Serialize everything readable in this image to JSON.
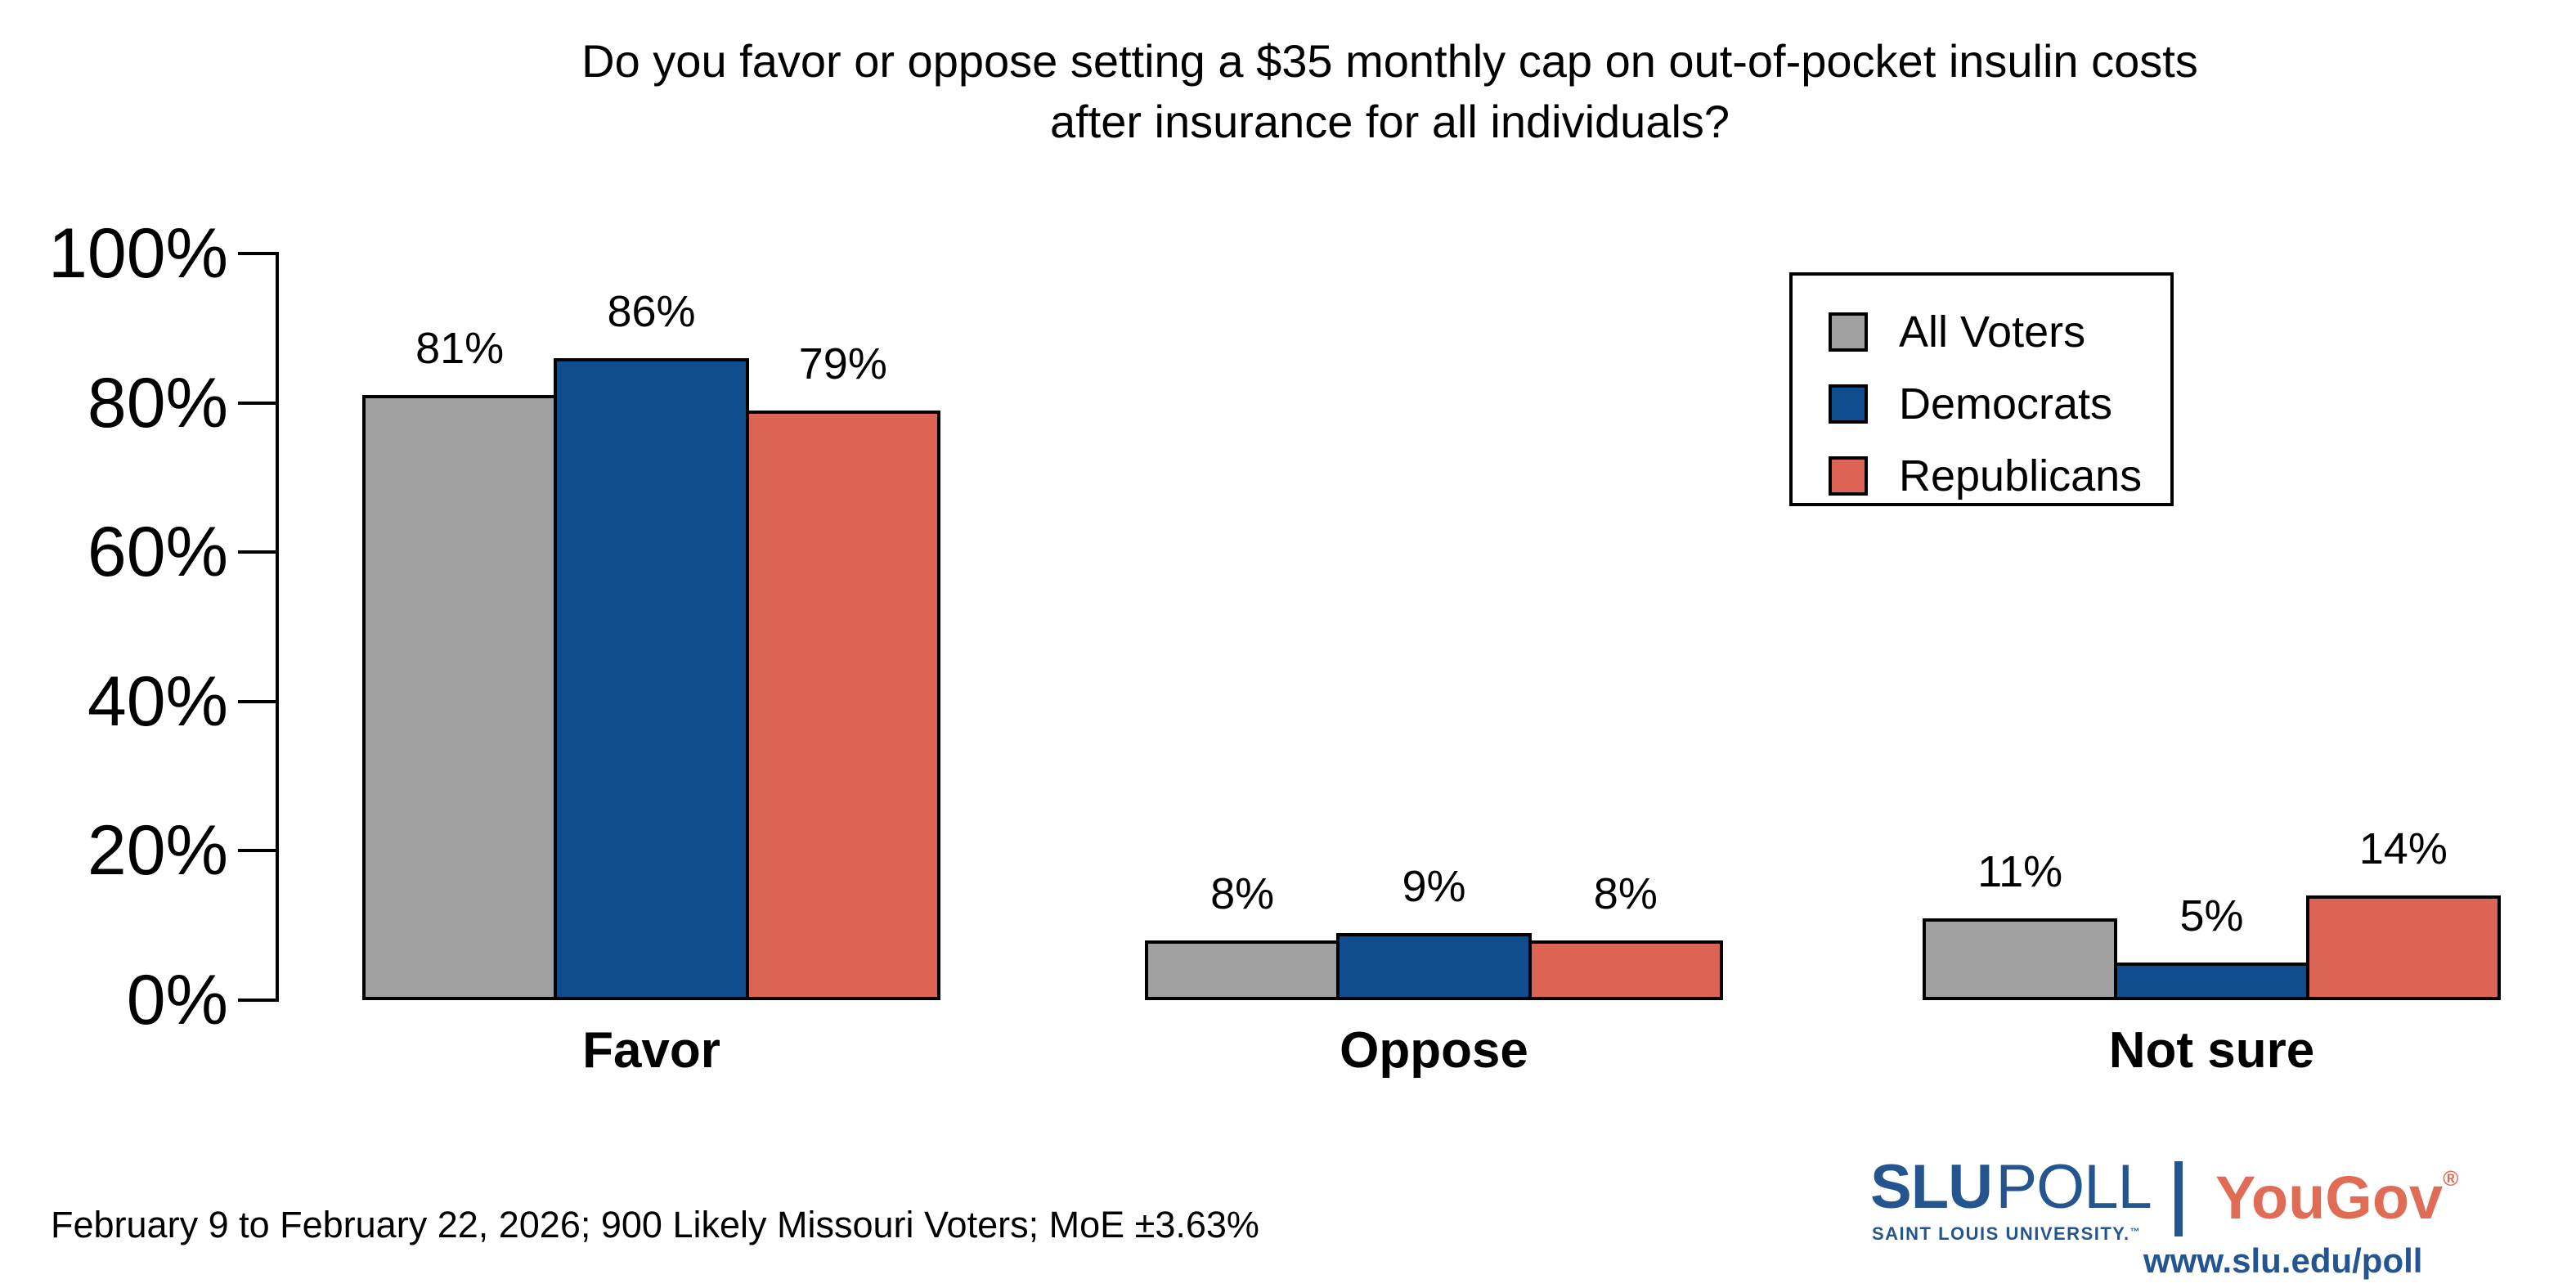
{
  "title": {
    "line1": "Do you favor or oppose setting a $35 monthly cap on out-of-pocket insulin costs",
    "line2": "after insurance for all individuals?"
  },
  "chart_data": {
    "type": "bar",
    "categories": [
      "Favor",
      "Oppose",
      "Not sure"
    ],
    "series": [
      {
        "name": "All Voters",
        "color": "#A0A0A0",
        "values": [
          81,
          8,
          11
        ],
        "labels": [
          "81%",
          "8%",
          "11%"
        ]
      },
      {
        "name": "Democrats",
        "color": "#104D8F",
        "values": [
          86,
          9,
          5
        ],
        "labels": [
          "86%",
          "9%",
          "5%"
        ]
      },
      {
        "name": "Republicans",
        "color": "#DB6455",
        "values": [
          79,
          8,
          14
        ],
        "labels": [
          "79%",
          "8%",
          "14%"
        ]
      }
    ],
    "yticks": [
      "0%",
      "20%",
      "40%",
      "60%",
      "80%",
      "100%"
    ],
    "ylim": [
      0,
      100
    ],
    "grid": false,
    "legend_position": "upper right",
    "bar_outline_color": "#000000"
  },
  "footer": {
    "note": "February 9 to February 22, 2026; 900 Likely Missouri Voters; MoE ±3.63%"
  },
  "branding": {
    "slu": "SLU",
    "poll": "POLL",
    "slu_subtitle": "SAINT LOUIS UNIVERSITY.",
    "slu_tm": "™",
    "yougov": "YouGov",
    "yougov_reg": "®",
    "url": "www.slu.edu/poll",
    "slu_blue": "#24558F",
    "yougov_coral": "#E06C55"
  }
}
